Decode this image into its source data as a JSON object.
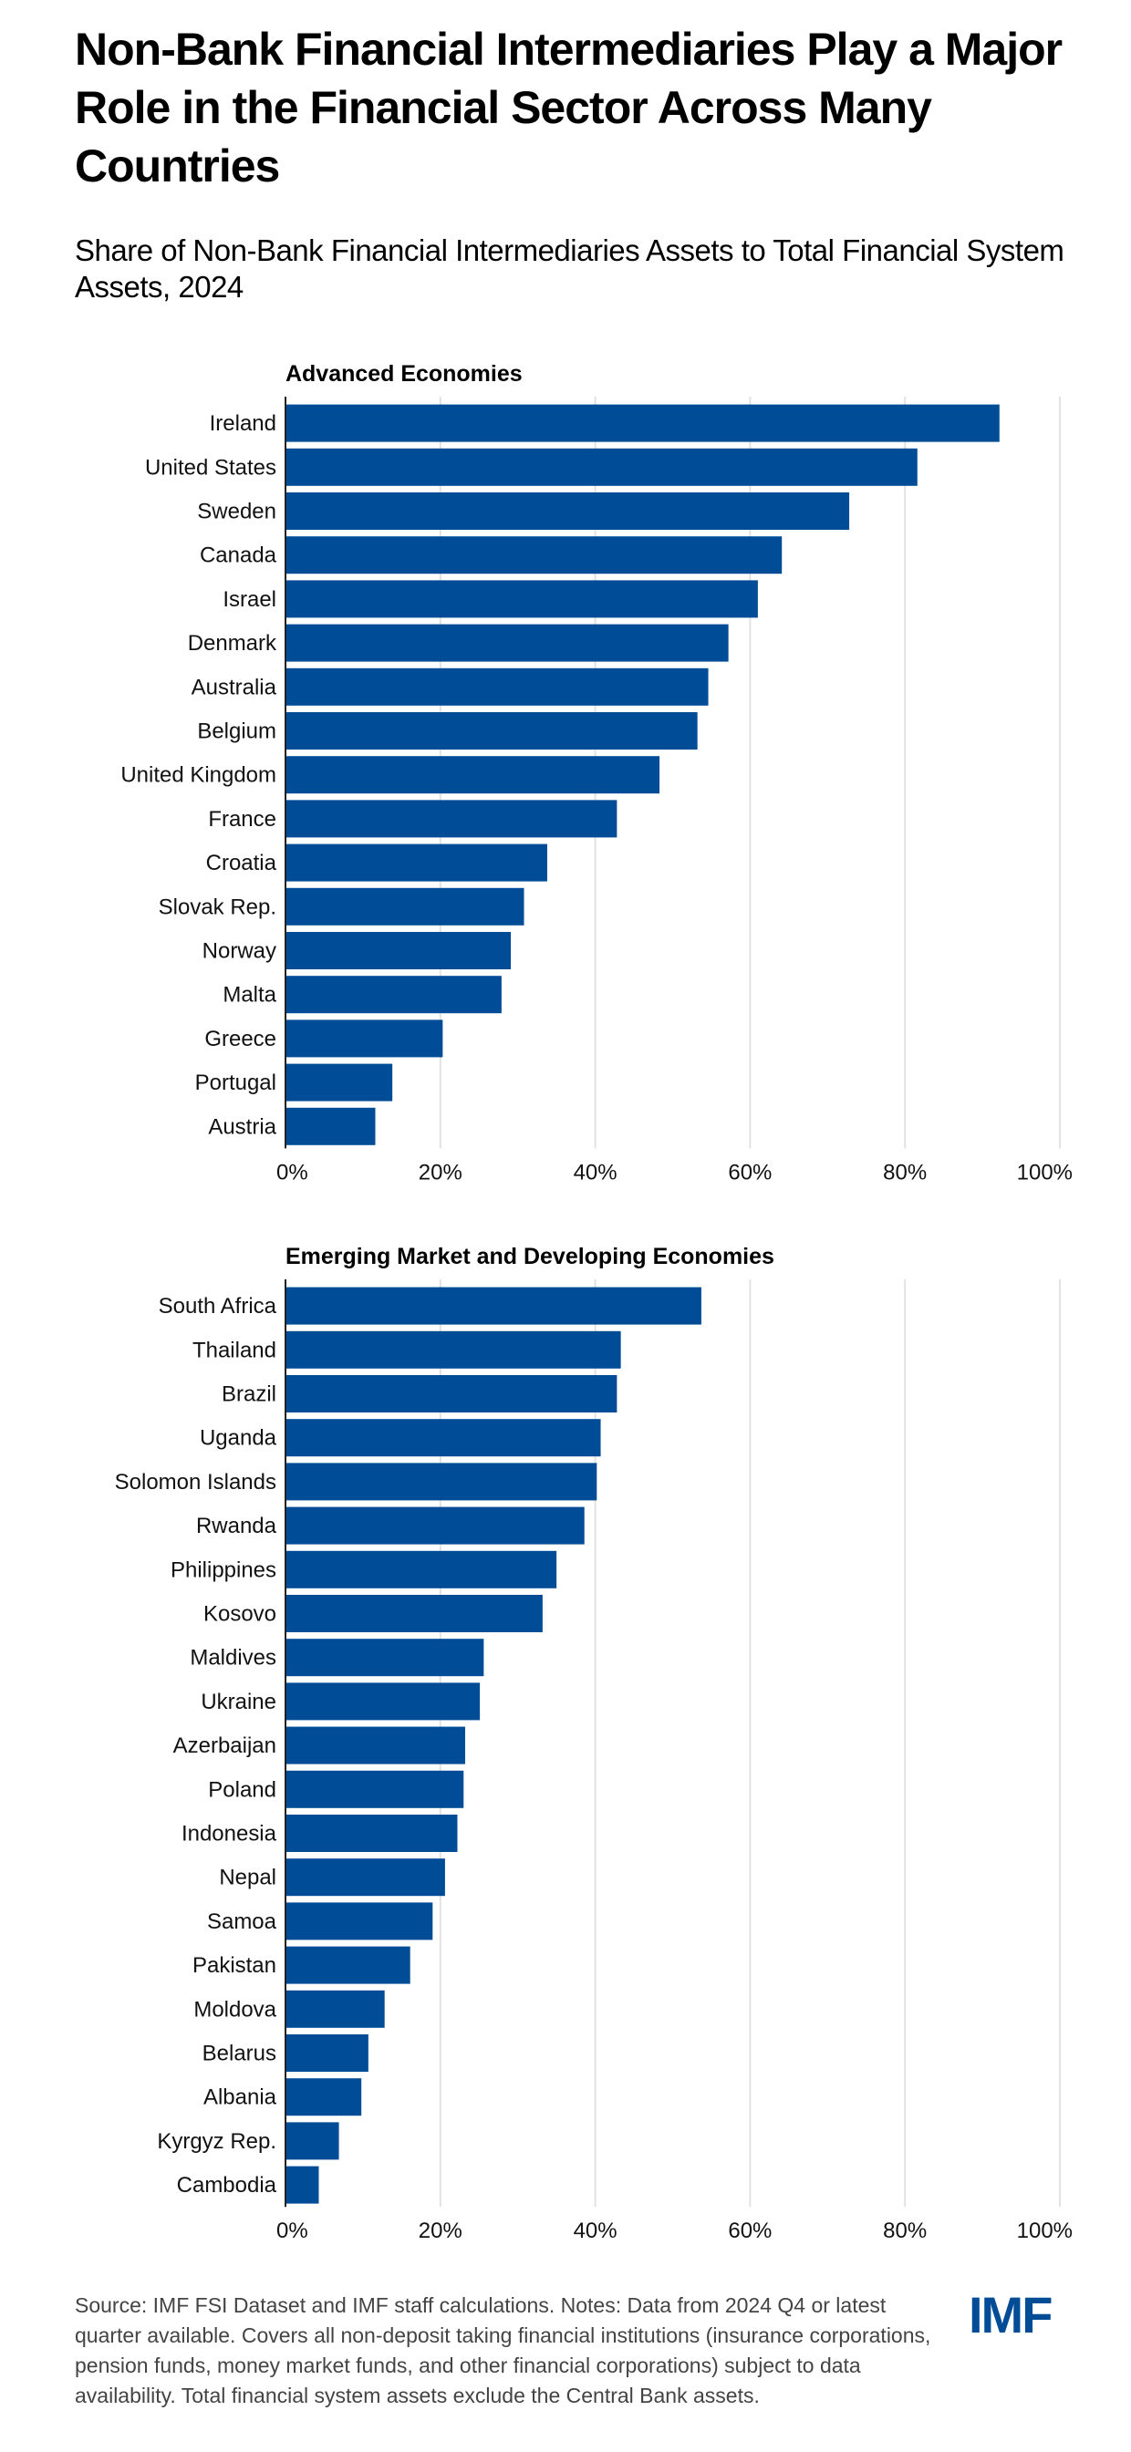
{
  "title": "Non-Bank Financial Intermediaries Play a Major Role in the Financial Sector Across Many Countries",
  "subtitle": "Share of Non-Bank Financial Intermediaries Assets to Total Financial System Assets, 2024",
  "footer": "Source: IMF FSI Dataset and IMF staff calculations. Notes: Data from 2024 Q4 or latest quarter available. Covers all non-deposit taking financial institutions (insurance corporations, pension funds, money market funds, and other financial corporations) subject to data availability. Total financial system assets exclude the Central Bank assets.",
  "logo": "IMF",
  "colors": {
    "bar": "#004C97",
    "grid": "#E2E2E2",
    "axis": "#222222"
  },
  "chart_data": [
    {
      "type": "bar",
      "orientation": "horizontal",
      "title": "Advanced Economies",
      "xlabel": "",
      "ylabel": "",
      "xlim": [
        0,
        100
      ],
      "x_ticks": [
        "0%",
        "20%",
        "40%",
        "60%",
        "80%",
        "100%"
      ],
      "grid": true,
      "categories": [
        "Ireland",
        "United States",
        "Sweden",
        "Canada",
        "Israel",
        "Denmark",
        "Australia",
        "Belgium",
        "United Kingdom",
        "France",
        "Croatia",
        "Slovak Rep.",
        "Norway",
        "Malta",
        "Greece",
        "Portugal",
        "Austria"
      ],
      "values": [
        92.2,
        81.6,
        72.8,
        64.1,
        61.0,
        57.2,
        54.6,
        53.2,
        48.3,
        42.8,
        33.8,
        30.8,
        29.1,
        27.9,
        20.3,
        13.8,
        11.6
      ]
    },
    {
      "type": "bar",
      "orientation": "horizontal",
      "title": "Emerging Market and Developing Economies",
      "xlabel": "",
      "ylabel": "",
      "xlim": [
        0,
        100
      ],
      "x_ticks": [
        "0%",
        "20%",
        "40%",
        "60%",
        "80%",
        "100%"
      ],
      "grid": true,
      "categories": [
        "South Africa",
        "Thailand",
        "Brazil",
        "Uganda",
        "Solomon Islands",
        "Rwanda",
        "Philippines",
        "Kosovo",
        "Maldives",
        "Ukraine",
        "Azerbaijan",
        "Poland",
        "Indonesia",
        "Nepal",
        "Samoa",
        "Pakistan",
        "Moldova",
        "Belarus",
        "Albania",
        "Kyrgyz Rep.",
        "Cambodia"
      ],
      "values": [
        53.7,
        43.3,
        42.8,
        40.7,
        40.2,
        38.6,
        35.0,
        33.2,
        25.6,
        25.1,
        23.2,
        23.0,
        22.2,
        20.6,
        19.0,
        16.1,
        12.8,
        10.7,
        9.8,
        6.9,
        4.3
      ]
    }
  ]
}
